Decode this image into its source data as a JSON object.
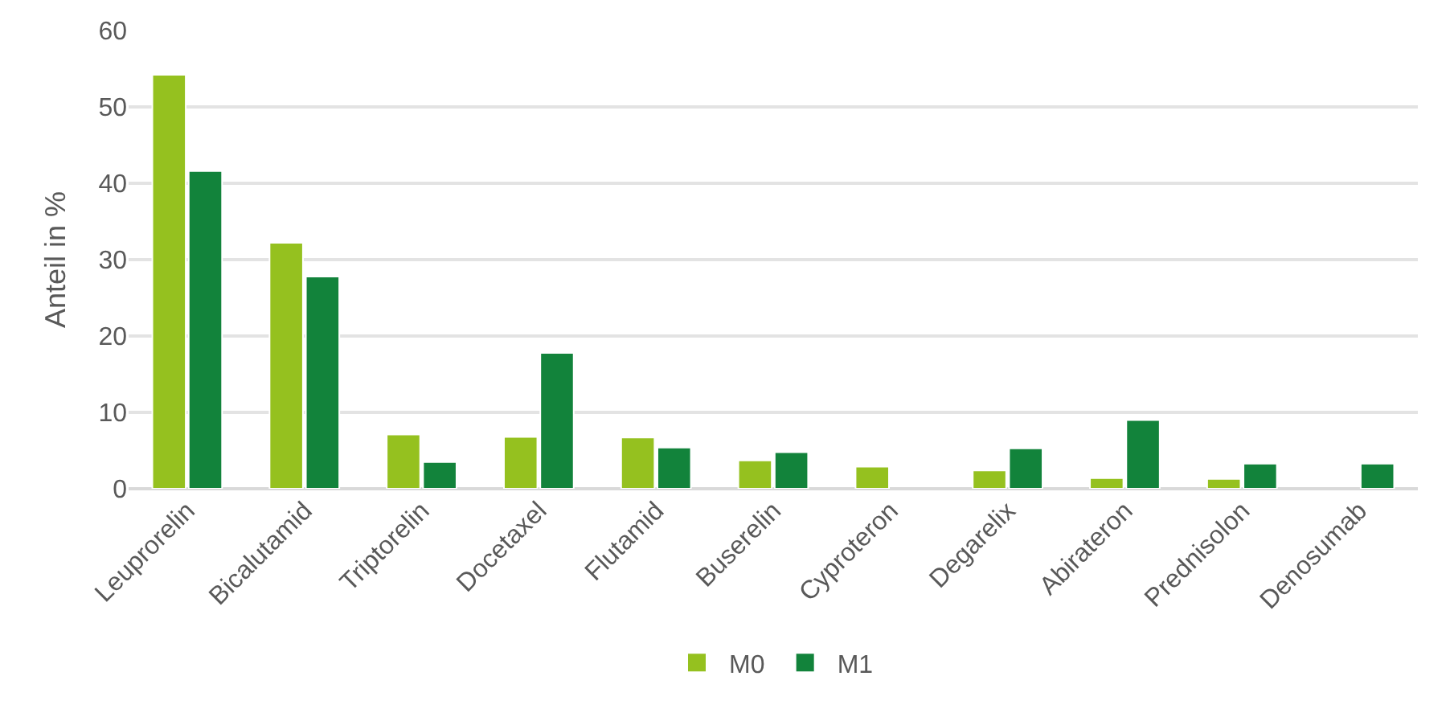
{
  "chart_data": {
    "type": "bar",
    "ylabel": "Anteil in %",
    "categories": [
      "Leuprorelin",
      "Bicalutamid",
      "Triptorelin",
      "Docetaxel",
      "Flutamid",
      "Buserelin",
      "Cyproteron",
      "Degarelix",
      "Abirateron",
      "Prednisolon",
      "Denosumab"
    ],
    "series": [
      {
        "name": "M0",
        "color": "#95c11f",
        "values": [
          54.2,
          32.2,
          7.1,
          6.8,
          6.7,
          3.7,
          2.9,
          2.4,
          1.4,
          1.3,
          null
        ]
      },
      {
        "name": "M1",
        "color": "#12833b",
        "values": [
          41.6,
          27.8,
          3.5,
          17.8,
          5.4,
          4.8,
          null,
          5.3,
          9.0,
          3.3,
          3.3
        ]
      }
    ],
    "ylim": [
      0,
      60
    ],
    "yticks": [
      0,
      10,
      20,
      30,
      40,
      50,
      60
    ],
    "grid": "y",
    "legend": "bottom"
  }
}
